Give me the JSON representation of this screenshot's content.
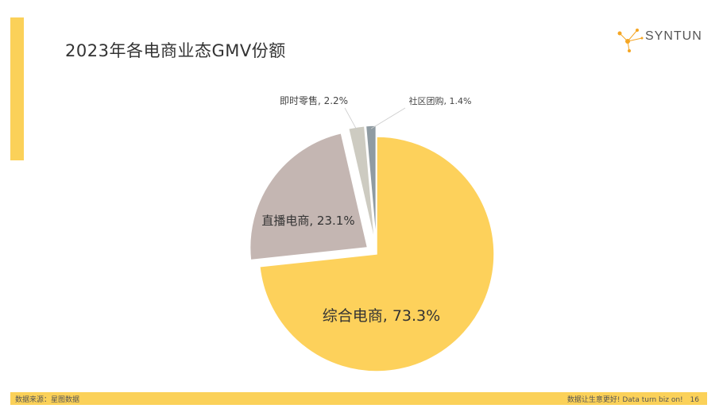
{
  "header": {
    "title": "2023年各电商业态GMV份额",
    "brand": "SYNTUN"
  },
  "footer": {
    "source": "数据来源：星图数据",
    "slogan": "数据让生意更好! Data turn biz on!",
    "page_number": "16"
  },
  "chart_data": {
    "type": "pie",
    "title": "",
    "slices": [
      {
        "label": "综合电商, 73.3%",
        "name": "综合电商",
        "value": 73.3,
        "color": "#FDD15B",
        "exploded": false
      },
      {
        "label": "直播电商, 23.1%",
        "name": "直播电商",
        "value": 23.1,
        "color": "#C4B6B2",
        "exploded": true
      },
      {
        "label": "即时零售, 2.2%",
        "name": "即时零售",
        "value": 2.2,
        "color": "#CDCBC1",
        "exploded": true
      },
      {
        "label": "社区团购, 1.4%",
        "name": "社区团购",
        "value": 1.4,
        "color": "#8F9BA2",
        "exploded": true
      }
    ]
  }
}
